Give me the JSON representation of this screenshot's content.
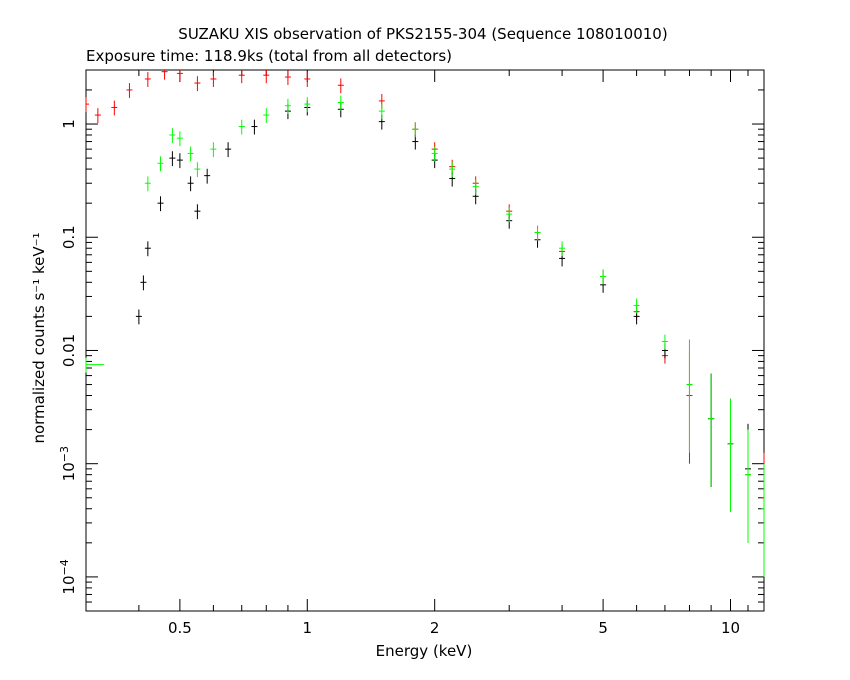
{
  "chart_data": {
    "type": "scatter",
    "title": "SUZAKU XIS observation of PKS2155-304 (Sequence 108010010)",
    "subtitle": "Exposure time: 118.9ks (total from all detectors)",
    "xlabel": "Energy (keV)",
    "ylabel": "normalized counts s⁻¹ keV⁻¹",
    "x_scale": "log",
    "y_scale": "log",
    "xlim": [
      0.3,
      12.0
    ],
    "ylim": [
      5e-05,
      3.0
    ],
    "x_ticks": [
      {
        "value": 0.5,
        "label": "0.5"
      },
      {
        "value": 1,
        "label": "1"
      },
      {
        "value": 2,
        "label": "2"
      },
      {
        "value": 5,
        "label": "5"
      },
      {
        "value": 10,
        "label": "10"
      }
    ],
    "y_ticks": [
      {
        "value": 1,
        "label": "1"
      },
      {
        "value": 0.1,
        "label": "0.1"
      },
      {
        "value": 0.01,
        "label": "0.01"
      },
      {
        "value": 0.001,
        "base": "10",
        "exp": "−3"
      },
      {
        "value": 0.0001,
        "base": "10",
        "exp": "−4"
      }
    ],
    "grid": false,
    "series": [
      {
        "color": "#ff0000",
        "points": [
          [
            0.3,
            1.5
          ],
          [
            0.32,
            1.2
          ],
          [
            0.35,
            1.4
          ],
          [
            0.38,
            2.0
          ],
          [
            0.42,
            2.5
          ],
          [
            0.46,
            2.9
          ],
          [
            0.5,
            2.8
          ],
          [
            0.55,
            2.3
          ],
          [
            0.6,
            2.5
          ],
          [
            0.7,
            2.7
          ],
          [
            0.8,
            2.7
          ],
          [
            0.9,
            2.6
          ],
          [
            1.0,
            2.5
          ],
          [
            1.2,
            2.2
          ],
          [
            1.5,
            1.6
          ],
          [
            1.8,
            0.9
          ],
          [
            2.0,
            0.6
          ],
          [
            2.2,
            0.42
          ],
          [
            2.5,
            0.3
          ],
          [
            3.0,
            0.17
          ],
          [
            3.5,
            0.11
          ],
          [
            4.0,
            0.075
          ],
          [
            5.0,
            0.045
          ],
          [
            6.0,
            0.022
          ],
          [
            7.0,
            0.009
          ],
          [
            8.0,
            0.004
          ],
          [
            9.0,
            0.0025
          ],
          [
            10.0,
            0.0015
          ],
          [
            11.0,
            0.0008
          ],
          [
            12.0,
            0.0005
          ]
        ]
      },
      {
        "color": "#000000",
        "points": [
          [
            0.4,
            0.02
          ],
          [
            0.41,
            0.04
          ],
          [
            0.42,
            0.08
          ],
          [
            0.45,
            0.2
          ],
          [
            0.48,
            0.5
          ],
          [
            0.5,
            0.48
          ],
          [
            0.53,
            0.3
          ],
          [
            0.55,
            0.17
          ],
          [
            0.58,
            0.35
          ],
          [
            0.65,
            0.6
          ],
          [
            0.75,
            0.95
          ],
          [
            0.9,
            1.3
          ],
          [
            1.0,
            1.4
          ],
          [
            1.2,
            1.35
          ],
          [
            1.5,
            1.05
          ],
          [
            1.8,
            0.7
          ],
          [
            2.0,
            0.48
          ],
          [
            2.2,
            0.33
          ],
          [
            2.5,
            0.23
          ],
          [
            3.0,
            0.14
          ],
          [
            3.5,
            0.095
          ],
          [
            4.0,
            0.065
          ],
          [
            5.0,
            0.038
          ],
          [
            6.0,
            0.02
          ],
          [
            7.0,
            0.01
          ],
          [
            8.0,
            0.005
          ],
          [
            9.0,
            0.0025
          ],
          [
            10.0,
            0.0015
          ],
          [
            11.0,
            0.0009
          ]
        ]
      },
      {
        "color": "#00ff00",
        "points": [
          [
            0.3,
            0.0075
          ],
          [
            0.42,
            0.3
          ],
          [
            0.45,
            0.45
          ],
          [
            0.48,
            0.8
          ],
          [
            0.5,
            0.75
          ],
          [
            0.53,
            0.55
          ],
          [
            0.55,
            0.4
          ],
          [
            0.6,
            0.6
          ],
          [
            0.7,
            0.95
          ],
          [
            0.8,
            1.2
          ],
          [
            0.9,
            1.45
          ],
          [
            1.0,
            1.5
          ],
          [
            1.2,
            1.55
          ],
          [
            1.5,
            1.3
          ],
          [
            1.8,
            0.9
          ],
          [
            2.0,
            0.55
          ],
          [
            2.2,
            0.4
          ],
          [
            2.5,
            0.28
          ],
          [
            3.0,
            0.16
          ],
          [
            3.5,
            0.11
          ],
          [
            4.0,
            0.08
          ],
          [
            5.0,
            0.045
          ],
          [
            6.0,
            0.025
          ],
          [
            7.0,
            0.012
          ],
          [
            8.0,
            0.005
          ],
          [
            9.0,
            0.0025
          ],
          [
            10.0,
            0.0015
          ],
          [
            11.0,
            0.0008
          ],
          [
            12.0,
            0.0004
          ]
        ]
      }
    ]
  }
}
